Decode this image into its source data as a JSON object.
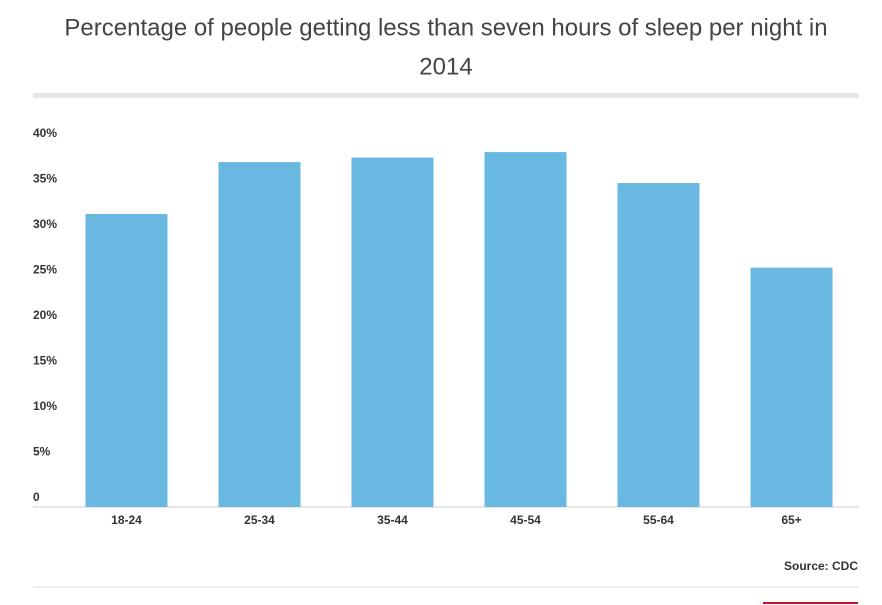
{
  "chart_data": {
    "type": "bar",
    "title": [
      "Percentage of people getting less than seven hours of sleep per night in",
      "2014"
    ],
    "categories": [
      "18-24",
      "25-34",
      "35-44",
      "45-54",
      "55-64",
      "65+"
    ],
    "values": [
      32.2,
      37.9,
      38.4,
      39.0,
      35.6,
      26.3
    ],
    "color": "#68b8e1",
    "ylim": [
      0,
      40
    ],
    "yticks": [
      0,
      {
        "value": 5,
        "label": "5%"
      },
      {
        "value": 10,
        "label": "10%"
      },
      {
        "value": 15,
        "label": "15%"
      },
      {
        "value": 20,
        "label": "20%"
      },
      {
        "value": 25,
        "label": "25%"
      },
      {
        "value": 30,
        "label": "30%"
      },
      {
        "value": 35,
        "label": "35%"
      },
      {
        "value": 40,
        "label": "40%"
      }
    ],
    "source": "Source: CDC"
  }
}
